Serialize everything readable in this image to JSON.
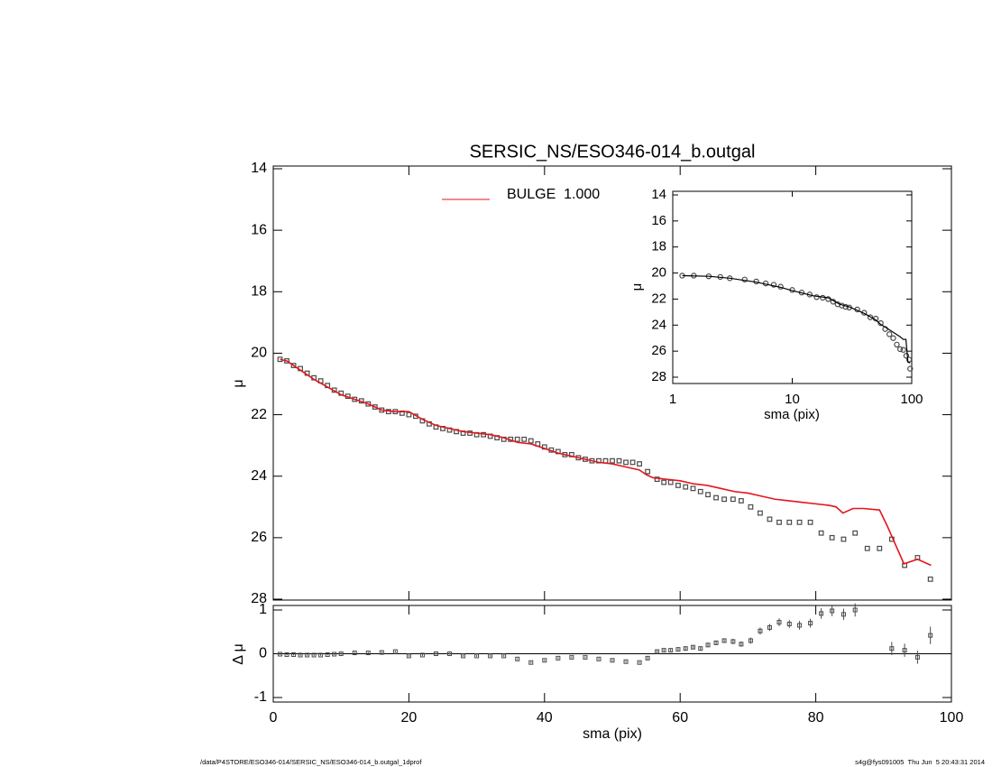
{
  "chart_data": [
    {
      "type": "line",
      "title": "SERSIC_NS/ESO346-014_b.outgal",
      "ylabel": "μ",
      "xlim": [
        0,
        100
      ],
      "ylim": [
        14,
        28
      ],
      "yticks": [
        14,
        16,
        18,
        20,
        22,
        24,
        26,
        28
      ],
      "y_reversed": true,
      "legend": "top",
      "series": [
        {
          "color": "#4a4a4a",
          "marker": "square",
          "x": [
            1,
            2,
            3,
            4,
            5,
            6,
            7,
            8,
            9,
            10,
            11,
            12,
            13,
            14,
            15,
            16,
            17,
            18,
            19,
            20,
            21,
            22,
            23,
            24,
            25,
            26,
            27,
            28,
            29,
            30,
            31,
            32,
            33,
            34,
            35,
            36,
            37,
            38,
            39,
            40,
            41,
            42,
            43,
            44,
            45,
            46,
            47,
            48,
            49,
            50,
            51,
            52,
            53,
            54,
            55.2,
            56.6,
            57.6,
            58.6,
            59.7,
            60.8,
            61.9,
            63,
            64.1,
            65.3,
            66.5,
            67.8,
            69,
            70.4,
            71.8,
            73.2,
            74.6,
            76.1,
            77.6,
            79.2,
            80.8,
            82.4,
            84.1,
            85.8,
            87.6,
            89.4,
            91.2,
            93.1,
            95,
            96.9
          ],
          "values": [
            20.2,
            20.25,
            20.4,
            20.5,
            20.65,
            20.8,
            20.9,
            21.05,
            21.2,
            21.3,
            21.4,
            21.5,
            21.55,
            21.65,
            21.75,
            21.85,
            21.9,
            21.9,
            21.95,
            22.0,
            22.05,
            22.2,
            22.3,
            22.4,
            22.45,
            22.5,
            22.55,
            22.6,
            22.6,
            22.65,
            22.65,
            22.7,
            22.75,
            22.8,
            22.8,
            22.8,
            22.8,
            22.85,
            22.95,
            23.05,
            23.15,
            23.2,
            23.3,
            23.3,
            23.4,
            23.45,
            23.5,
            23.5,
            23.5,
            23.5,
            23.5,
            23.55,
            23.55,
            23.6,
            23.85,
            24.1,
            24.2,
            24.2,
            24.3,
            24.35,
            24.4,
            24.5,
            24.6,
            24.7,
            24.75,
            24.75,
            24.8,
            25.0,
            25.2,
            25.4,
            25.5,
            25.5,
            25.5,
            25.5,
            25.85,
            26.0,
            26.05,
            25.85,
            26.35,
            26.35,
            26.05,
            26.9,
            26.65,
            27.35
          ]
        },
        {
          "name": "BULGE  1.000",
          "color": "#e3161b",
          "marker": "none",
          "x": [
            1,
            2,
            3,
            4,
            5,
            6,
            8,
            10,
            12,
            14,
            16,
            18,
            20,
            22,
            24,
            26,
            28,
            30,
            32,
            34,
            36,
            38,
            40,
            42,
            44,
            46,
            48,
            50,
            52,
            54,
            55,
            56,
            58,
            60,
            62,
            64,
            66,
            68,
            70,
            72,
            74,
            76,
            78,
            80,
            82,
            83,
            84,
            85.5,
            87,
            89.4,
            90.5,
            93,
            95,
            97
          ],
          "values": [
            20.2,
            20.25,
            20.4,
            20.55,
            20.7,
            20.85,
            21.1,
            21.35,
            21.5,
            21.65,
            21.85,
            21.9,
            21.9,
            22.15,
            22.35,
            22.45,
            22.55,
            22.6,
            22.65,
            22.75,
            22.9,
            22.95,
            23.1,
            23.25,
            23.35,
            23.45,
            23.55,
            23.6,
            23.7,
            23.8,
            23.95,
            24.05,
            24.1,
            24.15,
            24.25,
            24.3,
            24.4,
            24.5,
            24.55,
            24.65,
            24.75,
            24.8,
            24.85,
            24.9,
            24.95,
            25.0,
            25.2,
            25.05,
            25.05,
            25.1,
            25.6,
            26.85,
            26.7,
            26.9
          ]
        }
      ]
    },
    {
      "type": "errorbar",
      "xlabel": "sma (pix)",
      "ylabel": "Δ μ",
      "xlim": [
        0,
        100
      ],
      "xticks": [
        0,
        20,
        40,
        60,
        80,
        100
      ],
      "ylim": [
        -1,
        1
      ],
      "yticks": [
        -1,
        0,
        1
      ],
      "hline": 0,
      "color": "#4a4a4a",
      "x": [
        1,
        2,
        3,
        4,
        5,
        6,
        7,
        8,
        9,
        10,
        12,
        14,
        16,
        18,
        20,
        22,
        24,
        26,
        28,
        30,
        32,
        34,
        36,
        38,
        40,
        42,
        44,
        46,
        48,
        50,
        52,
        54,
        55.2,
        56.6,
        57.6,
        58.6,
        59.7,
        60.8,
        61.9,
        63,
        64.1,
        65.3,
        66.5,
        67.8,
        69,
        70.4,
        71.8,
        73.2,
        74.6,
        76.1,
        77.6,
        79.2,
        80.8,
        82.4,
        84.1,
        85.8,
        91.2,
        93.1,
        95,
        96.9
      ],
      "values": [
        -0.01,
        -0.02,
        -0.02,
        -0.03,
        -0.03,
        -0.03,
        -0.03,
        -0.02,
        -0.01,
        0.0,
        0.02,
        0.02,
        0.03,
        0.05,
        -0.05,
        -0.03,
        0.0,
        0.0,
        -0.05,
        -0.05,
        -0.05,
        -0.05,
        -0.12,
        -0.2,
        -0.15,
        -0.1,
        -0.08,
        -0.08,
        -0.12,
        -0.15,
        -0.18,
        -0.2,
        -0.1,
        0.05,
        0.08,
        0.08,
        0.1,
        0.12,
        0.15,
        0.12,
        0.2,
        0.25,
        0.3,
        0.28,
        0.22,
        0.3,
        0.52,
        0.6,
        0.72,
        0.68,
        0.65,
        0.7,
        0.92,
        0.98,
        0.9,
        1.0,
        0.12,
        0.08,
        -0.08,
        0.42
      ],
      "errors": [
        0.02,
        0.02,
        0.02,
        0.02,
        0.02,
        0.02,
        0.02,
        0.02,
        0.02,
        0.02,
        0.02,
        0.02,
        0.02,
        0.02,
        0.02,
        0.02,
        0.02,
        0.02,
        0.02,
        0.02,
        0.02,
        0.02,
        0.02,
        0.02,
        0.02,
        0.02,
        0.02,
        0.02,
        0.02,
        0.02,
        0.02,
        0.02,
        0.03,
        0.03,
        0.03,
        0.03,
        0.03,
        0.04,
        0.04,
        0.04,
        0.05,
        0.05,
        0.05,
        0.06,
        0.06,
        0.07,
        0.08,
        0.08,
        0.09,
        0.09,
        0.1,
        0.1,
        0.12,
        0.12,
        0.13,
        0.15,
        0.15,
        0.15,
        0.15,
        0.2
      ]
    },
    {
      "type": "line",
      "xlabel": "sma (pix)",
      "ylabel": "μ",
      "log_x": true,
      "xlim": [
        1,
        100
      ],
      "xticks": [
        1,
        10,
        100
      ],
      "ylim": [
        14,
        28
      ],
      "yticks": [
        14,
        16,
        18,
        20,
        22,
        24,
        26,
        28
      ],
      "y_reversed": true,
      "series": [
        {
          "color": "#4a4a4a",
          "marker": "circle",
          "x": [
            1.2,
            1.5,
            2,
            2.5,
            3,
            4,
            5,
            6,
            7,
            8,
            10,
            12,
            14,
            16,
            18,
            20,
            22,
            24,
            26,
            28,
            30,
            35,
            40,
            45,
            50,
            55,
            60,
            65,
            70,
            75,
            80,
            85,
            90,
            95,
            97
          ],
          "values": [
            20.2,
            20.2,
            20.25,
            20.3,
            20.4,
            20.5,
            20.65,
            20.8,
            20.9,
            21.05,
            21.3,
            21.5,
            21.65,
            21.85,
            21.9,
            22.0,
            22.2,
            22.4,
            22.5,
            22.6,
            22.65,
            22.8,
            23.05,
            23.4,
            23.5,
            23.85,
            24.3,
            24.7,
            25.0,
            25.5,
            25.85,
            25.9,
            26.35,
            26.65,
            27.35
          ]
        },
        {
          "color": "#000000",
          "marker": "none",
          "x": [
            1.2,
            2,
            3,
            5,
            8,
            10,
            15,
            20,
            25,
            30,
            40,
            50,
            55,
            60,
            70,
            80,
            85,
            89.4,
            93,
            97
          ],
          "values": [
            20.2,
            20.25,
            20.4,
            20.7,
            21.1,
            21.35,
            21.75,
            21.9,
            22.4,
            22.6,
            23.1,
            23.6,
            23.95,
            24.15,
            24.55,
            24.9,
            25.1,
            25.1,
            26.85,
            26.9
          ]
        }
      ]
    }
  ],
  "footer": {
    "left": "/data/P4STORE/ESO346-014/SERSIC_NS/ESO346-014_b.outgal_1dprof",
    "right": "s4g@fys091005  Thu Jun  5 20:43:31 2014"
  }
}
